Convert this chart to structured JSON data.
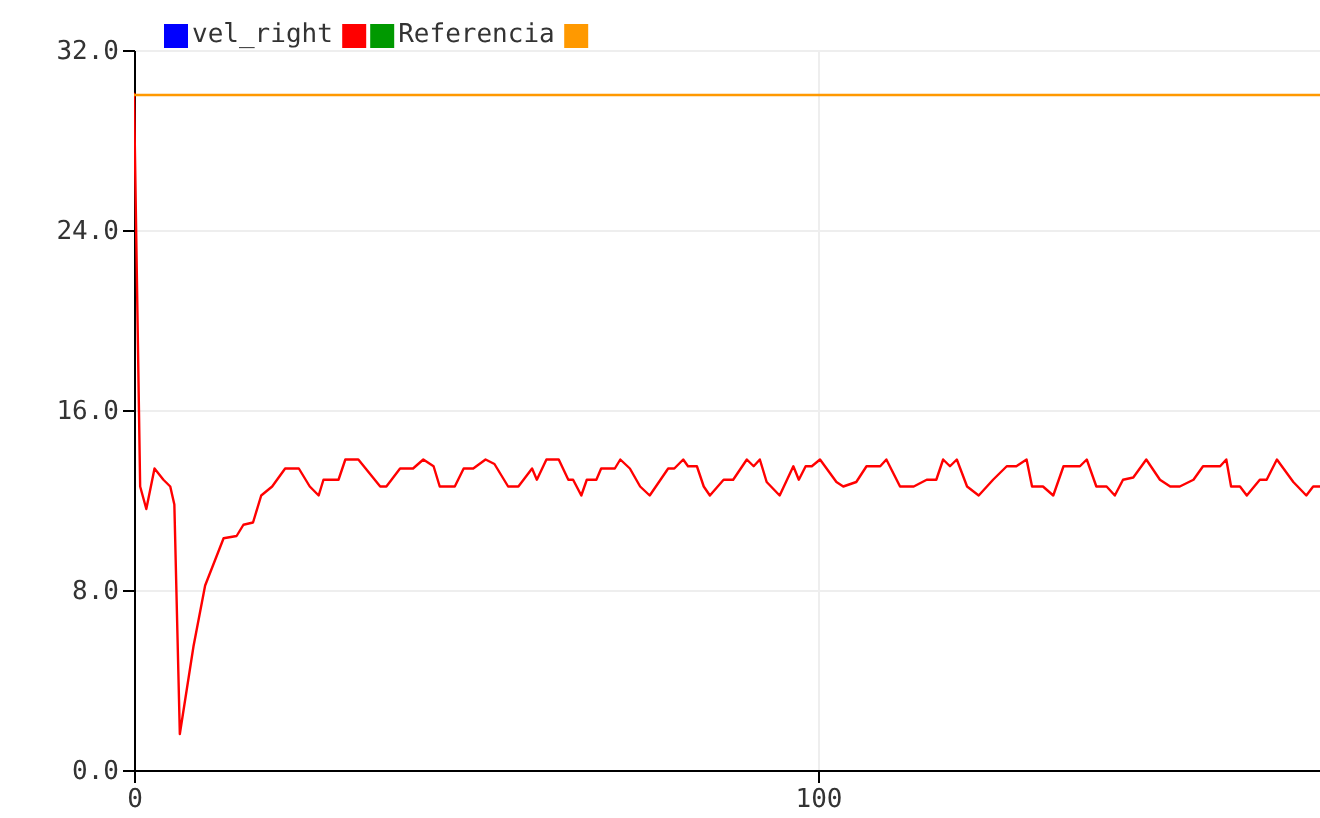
{
  "chart_data": {
    "type": "line",
    "series": [
      {
        "name": "vel_right",
        "color": "#0000ff"
      },
      {
        "color": "#ff0000",
        "x": [
          0,
          0.9,
          1.8,
          3,
          4.3,
          5.3,
          5.9,
          6.7,
          8.7,
          10.4,
          13.1,
          15,
          16,
          17.4,
          18.6,
          20.2,
          22.1,
          24.1,
          25.7,
          27,
          27.7,
          29.9,
          30.9,
          32.8,
          36,
          36.9,
          38.9,
          40.8,
          42.3,
          43.8,
          44.7,
          46.9,
          48.2,
          49.6,
          51.4,
          52.7,
          54.7,
          56.2,
          58.2,
          58.9,
          60.3,
          62.1,
          63.5,
          64.2,
          65.4,
          66.2,
          67.6,
          68.3,
          70.3,
          71.1,
          72.5,
          74,
          75.4,
          78.1,
          79,
          80.3,
          81,
          82.3,
          83.3,
          84.2,
          86.2,
          87.6,
          89.6,
          90.6,
          91.5,
          92.5,
          94.4,
          96.4,
          97.2,
          98.2,
          99.1,
          100.3,
          102.7,
          103.7,
          105.6,
          107.1,
          109.1,
          110,
          112,
          114,
          115.9,
          117.3,
          118.3,
          119.3,
          120.3,
          121.8,
          123.5,
          125.6,
          127.6,
          129,
          130.5,
          131.3,
          132.9,
          134.4,
          135.9,
          138.3,
          139.3,
          140.7,
          142.2,
          143.4,
          144.6,
          146.1,
          148,
          150,
          151.5,
          152.9,
          154.9,
          156.3,
          158.8,
          159.7,
          160.4,
          161.7,
          162.7,
          164.6,
          165.6,
          167.1,
          169.5,
          171.4,
          172.4,
          173.4
        ],
        "values": [
          30.1,
          12.6,
          11.6,
          13.4,
          12.9,
          12.6,
          11.8,
          1.6,
          5.5,
          8.2,
          10.3,
          10.4,
          10.9,
          11.0,
          12.2,
          12.6,
          13.4,
          13.4,
          12.6,
          12.2,
          12.9,
          12.9,
          13.8,
          13.8,
          12.6,
          12.6,
          13.4,
          13.4,
          13.8,
          13.5,
          12.6,
          12.6,
          13.4,
          13.4,
          13.8,
          13.6,
          12.6,
          12.6,
          13.4,
          12.9,
          13.8,
          13.8,
          12.9,
          12.9,
          12.2,
          12.9,
          12.9,
          13.4,
          13.4,
          13.8,
          13.4,
          12.6,
          12.2,
          13.4,
          13.4,
          13.8,
          13.5,
          13.5,
          12.6,
          12.2,
          12.9,
          12.9,
          13.8,
          13.5,
          13.8,
          12.8,
          12.2,
          13.5,
          12.9,
          13.5,
          13.5,
          13.8,
          12.8,
          12.6,
          12.8,
          13.5,
          13.5,
          13.8,
          12.6,
          12.6,
          12.9,
          12.9,
          13.8,
          13.5,
          13.8,
          12.6,
          12.2,
          12.9,
          13.5,
          13.5,
          13.8,
          12.6,
          12.6,
          12.2,
          13.5,
          13.5,
          13.8,
          12.6,
          12.6,
          12.2,
          12.9,
          13.0,
          13.8,
          12.9,
          12.6,
          12.6,
          12.9,
          13.5,
          13.5,
          13.8,
          12.6,
          12.6,
          12.2,
          12.9,
          12.9,
          13.8,
          12.8,
          12.2,
          12.6,
          12.6
        ]
      },
      {
        "name": "Referencia",
        "color": "#009900"
      },
      {
        "color": "#ff9900",
        "x": [
          0,
          173.4
        ],
        "values": [
          30,
          30
        ]
      }
    ],
    "xlim": [
      0,
      173.4
    ],
    "xticks": [
      0,
      100
    ],
    "ylim": [
      0,
      32
    ],
    "yticks": [
      {
        "value": 0,
        "label": "0.0"
      },
      {
        "value": 8,
        "label": "8.0"
      },
      {
        "value": 16,
        "label": "16.0"
      },
      {
        "value": 24,
        "label": "24.0"
      },
      {
        "value": 32,
        "label": "32.0"
      }
    ],
    "grid": true,
    "legend": "top left",
    "line_style": "solid",
    "marker": "none"
  }
}
